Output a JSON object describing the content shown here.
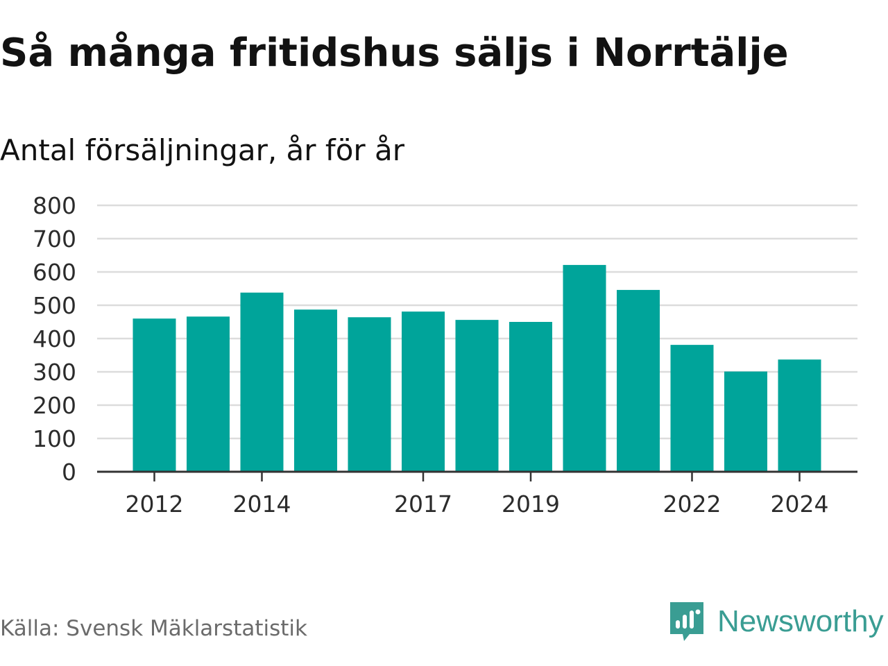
{
  "title": "Så många fritidshus säljs i Norrtälje",
  "subtitle": "Antal försäljningar, år för år",
  "source": "Källa: Svensk Mäklarstatistik",
  "brand": {
    "name": "Newsworthy",
    "icon": "newsworthy-logo-icon",
    "color": "#3a9d93"
  },
  "colors": {
    "bar": "#00a49a",
    "grid": "#dcdcdc",
    "axis": "#333333"
  },
  "chart_data": {
    "type": "bar",
    "categories": [
      "2012",
      "2013",
      "2014",
      "2015",
      "2016",
      "2017",
      "2018",
      "2019",
      "2020",
      "2021",
      "2022",
      "2023",
      "2024"
    ],
    "values": [
      460,
      466,
      538,
      487,
      464,
      481,
      456,
      450,
      621,
      546,
      381,
      301,
      337
    ],
    "x_tick_labels": [
      "2012",
      "2014",
      "2017",
      "2019",
      "2022",
      "2024"
    ],
    "y_ticks": [
      0,
      100,
      200,
      300,
      400,
      500,
      600,
      700,
      800
    ],
    "ylim": [
      0,
      800
    ],
    "title": "Så många fritidshus säljs i Norrtälje",
    "subtitle": "Antal försäljningar, år för år",
    "xlabel": "",
    "ylabel": "",
    "grid": true,
    "legend": "none"
  }
}
